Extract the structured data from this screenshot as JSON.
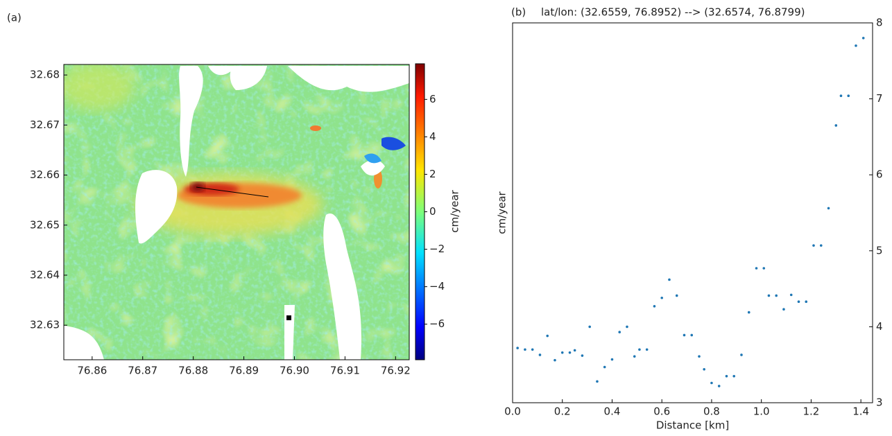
{
  "chart_data": [
    {
      "type": "heatmap",
      "panel_label": "(a)",
      "xlim": [
        76.8544,
        76.9227
      ],
      "ylim": [
        32.6231,
        32.6821
      ],
      "xticks": [
        76.86,
        76.87,
        76.88,
        76.89,
        {
          "value": 76.9,
          "label": "76.90"
        },
        76.91,
        76.92
      ],
      "yticks": [
        32.63,
        32.64,
        32.65,
        32.66,
        32.67,
        32.68
      ],
      "colorbar": {
        "label": "cm/year",
        "clim": [
          -7.9,
          7.9
        ],
        "ticks": [
          {
            "value": -6,
            "label": "−6"
          },
          {
            "value": -4,
            "label": "−4"
          },
          {
            "value": -2,
            "label": "−2"
          },
          0,
          2,
          4,
          6
        ]
      }
    },
    {
      "type": "scatter",
      "panel_label": "(b)",
      "title": "lat/lon: (32.6559, 76.8952) --> (32.6574, 76.8799)",
      "xlabel": "Distance [km]",
      "ylabel": "cm/year",
      "color": "#1f77b4",
      "x": [
        0.02,
        0.05,
        0.08,
        0.11,
        0.14,
        0.17,
        0.2,
        0.23,
        0.25,
        0.28,
        0.31,
        0.34,
        0.37,
        0.4,
        0.43,
        0.46,
        0.49,
        0.51,
        0.54,
        0.57,
        0.6,
        0.63,
        0.66,
        0.69,
        0.72,
        0.75,
        0.77,
        0.8,
        0.83,
        0.86,
        0.89,
        0.92,
        0.95,
        0.98,
        1.01,
        1.03,
        1.06,
        1.09,
        1.12,
        1.15,
        1.18,
        1.21,
        1.24,
        1.27,
        1.3,
        1.32,
        1.35,
        1.38,
        1.41
      ],
      "values": [
        3.72,
        3.7,
        3.7,
        3.63,
        3.88,
        3.56,
        3.66,
        3.66,
        3.69,
        3.62,
        4.0,
        3.28,
        3.47,
        3.57,
        3.93,
        4.0,
        3.61,
        3.7,
        3.7,
        4.27,
        4.38,
        4.62,
        4.41,
        3.89,
        3.89,
        3.61,
        3.44,
        3.26,
        3.22,
        3.35,
        3.35,
        3.63,
        4.19,
        4.77,
        4.77,
        4.41,
        4.41,
        4.23,
        4.42,
        4.33,
        4.33,
        5.07,
        5.07,
        5.56,
        6.65,
        7.04,
        7.04,
        7.7,
        7.8
      ],
      "xlim": [
        0,
        1.447
      ],
      "ylim": [
        3,
        8
      ],
      "xticks": [
        {
          "value": 0,
          "label": "0.0"
        },
        0.2,
        0.4,
        0.6,
        0.8,
        {
          "value": 1,
          "label": "1.0"
        },
        1.2,
        1.4
      ],
      "yticks": [
        3,
        4,
        5,
        6,
        7,
        8
      ]
    }
  ]
}
